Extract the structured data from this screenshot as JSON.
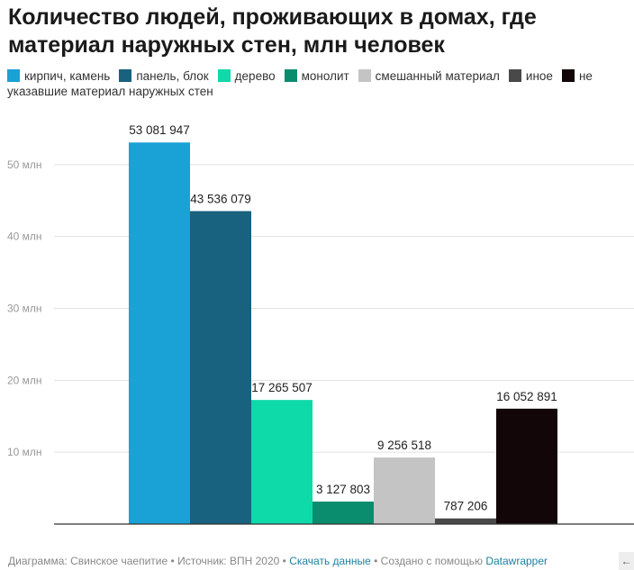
{
  "header": {
    "title": "Количество людей, проживающих в домах, где материал наружных стен, млн человек"
  },
  "chart_data": {
    "type": "bar",
    "categories": [
      "кирпич, камень",
      "панель, блок",
      "дерево",
      "монолит",
      "смешанный материал",
      "иное",
      "не указавшие материал наружных стен"
    ],
    "values": [
      53081947,
      43536079,
      17265507,
      3127803,
      9256518,
      787206,
      16052891
    ],
    "value_labels": [
      "53 081 947",
      "43 536 079",
      "17 265 507",
      "3 127 803",
      "9 256 518",
      "787 206",
      "16 052 891"
    ],
    "colors": [
      "#1aa1d6",
      "#18617f",
      "#0ed9a8",
      "#0a8c6e",
      "#c4c4c4",
      "#494949",
      "#120608"
    ],
    "yticks": [
      10000000,
      20000000,
      30000000,
      40000000,
      50000000
    ],
    "ytick_labels": [
      "10 млн",
      "20 млн",
      "30 млн",
      "40 млн",
      "50 млн"
    ],
    "ylim": [
      0,
      60000000
    ],
    "grid": true,
    "legend_position": "top"
  },
  "footer": {
    "chart_by": "Диаграмма: Свинское чаепитие",
    "source": "Источник: ВПН 2020",
    "download_label": "Скачать данные",
    "created_with": "Создано с помощью",
    "tool_name": "Datawrapper"
  },
  "icons": {
    "back": "arrow-left-icon"
  }
}
